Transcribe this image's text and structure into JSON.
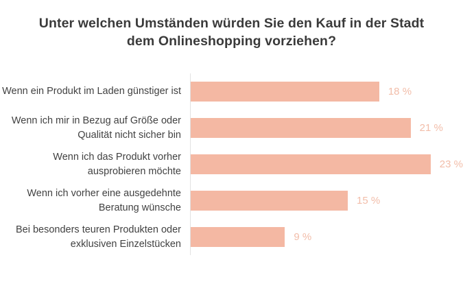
{
  "chart_data": {
    "type": "bar",
    "orientation": "horizontal",
    "title": "Unter welchen Umständen würden Sie den Kauf in der Stadt dem Onlineshopping vorziehen?",
    "title_lines": [
      "Unter welchen Umständen würden Sie den Kauf in der Stadt",
      "dem Onlineshopping vorziehen?"
    ],
    "categories": [
      "Wenn ein Produkt im Laden günstiger ist",
      "Wenn ich mir in Bezug auf Größe oder Qualität nicht sicher bin",
      "Wenn ich das Produkt vorher ausprobieren möchte",
      "Wenn ich vorher eine ausgedehnte Beratung wünsche",
      "Bei besonders teuren Produkten oder exklusiven Einzelstücken"
    ],
    "category_lines": [
      [
        "Wenn ein Produkt im Laden günstiger ist",
        ""
      ],
      [
        "Wenn ich mir in Bezug auf Größe oder",
        "Qualität nicht sicher bin"
      ],
      [
        "Wenn ich das Produkt vorher",
        "ausprobieren möchte"
      ],
      [
        "Wenn ich vorher eine ausgedehnte",
        "Beratung wünsche"
      ],
      [
        "Bei besonders teuren Produkten oder",
        "exklusiven Einzelstücken"
      ]
    ],
    "values": [
      18,
      21,
      23,
      15,
      9
    ],
    "value_labels": [
      "18 %",
      "21 %",
      "23 %",
      "15 %",
      "9 %"
    ],
    "unit": "%",
    "xlim": [
      0,
      26
    ],
    "grid": false,
    "legend": false,
    "value_label_position": "outside-right",
    "colors": {
      "bar": "#f4b8a3",
      "value_label": "#f2bda9",
      "category_label": "#414141",
      "title": "#3a3a3a",
      "axis_line": "#e2e2e2",
      "background": "#ffffff"
    }
  }
}
